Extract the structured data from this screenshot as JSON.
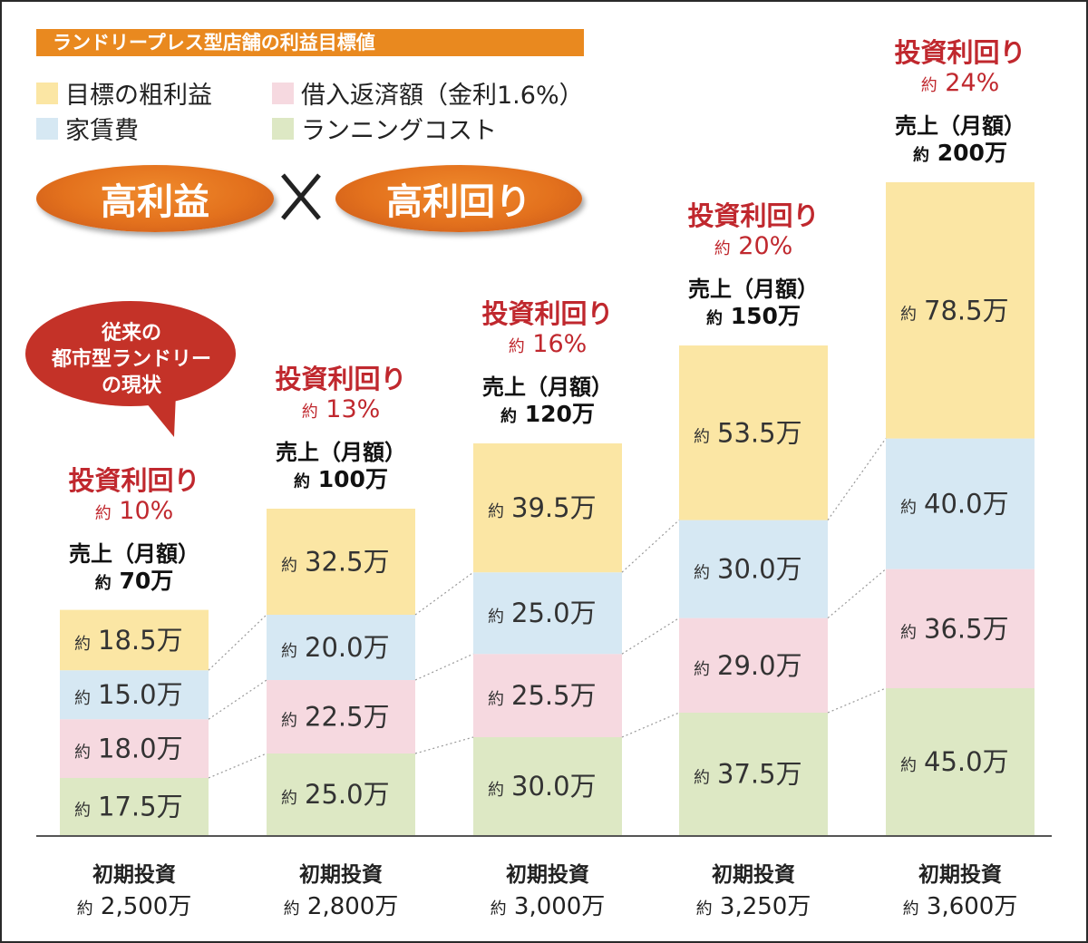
{
  "title": "ランドリープレス型店舗の利益目標値",
  "legend": [
    {
      "label": "目標の粗利益",
      "color": "#fbe6a4"
    },
    {
      "label": "借入返済額（金利1.6%）",
      "color": "#f6d9e0"
    },
    {
      "label": "家賃費",
      "color": "#d6e8f3"
    },
    {
      "label": "ランニングコスト",
      "color": "#dde8c4"
    }
  ],
  "badges": {
    "left": "高利益",
    "right": "高利回り",
    "times_icon": "times-icon"
  },
  "bubble": {
    "lines": [
      "従来の",
      "都市型ランドリー",
      "の現状"
    ],
    "color": "#c43228"
  },
  "labels": {
    "roi_title": "投資利回り",
    "sales_title": "売上（月額）",
    "approx": "約",
    "investment_title": "初期投資"
  },
  "chart_data": {
    "type": "bar",
    "stacked": true,
    "unit": "万",
    "series": [
      {
        "name": "ランニングコスト",
        "color": "#dde8c4",
        "values": [
          17.5,
          25.0,
          30.0,
          37.5,
          45.0
        ],
        "text": [
          "17.5万",
          "25.0万",
          "30.0万",
          "37.5万",
          "45.0万"
        ]
      },
      {
        "name": "借入返済額（金利1.6%）",
        "color": "#f6d9e0",
        "values": [
          18.0,
          22.5,
          25.5,
          29.0,
          36.5
        ],
        "text": [
          "18.0万",
          "22.5万",
          "25.5万",
          "29.0万",
          "36.5万"
        ]
      },
      {
        "name": "家賃費",
        "color": "#d6e8f3",
        "values": [
          15.0,
          20.0,
          25.0,
          30.0,
          40.0
        ],
        "text": [
          "15.0万",
          "20.0万",
          "25.0万",
          "30.0万",
          "40.0万"
        ]
      },
      {
        "name": "目標の粗利益",
        "color": "#fbe6a4",
        "values": [
          18.5,
          32.5,
          39.5,
          53.5,
          78.5
        ],
        "text": [
          "18.5万",
          "32.5万",
          "39.5万",
          "53.5万",
          "78.5万"
        ]
      }
    ],
    "columns": [
      {
        "roi": "10%",
        "sales": "70万",
        "investment": "2,500万"
      },
      {
        "roi": "13%",
        "sales": "100万",
        "investment": "2,800万"
      },
      {
        "roi": "16%",
        "sales": "120万",
        "investment": "3,000万"
      },
      {
        "roi": "20%",
        "sales": "150万",
        "investment": "3,250万"
      },
      {
        "roi": "24%",
        "sales": "200万",
        "investment": "3,600万"
      }
    ]
  }
}
